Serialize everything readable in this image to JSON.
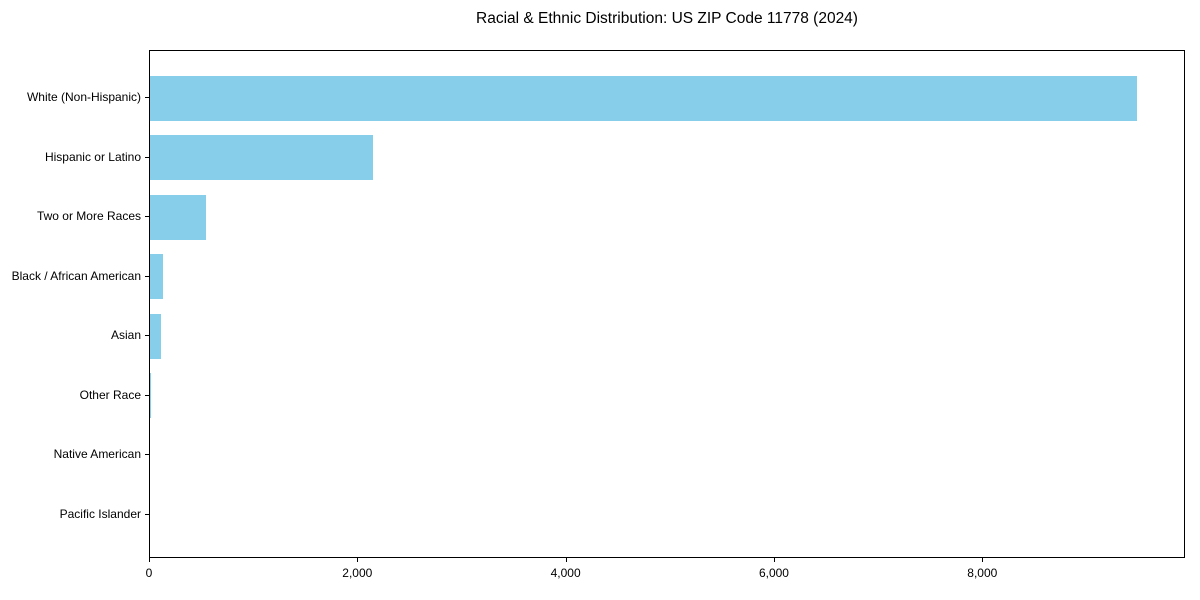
{
  "chart_data": {
    "type": "bar",
    "orientation": "horizontal",
    "title": "Racial & Ethnic Distribution: US ZIP Code 11778 (2024)",
    "categories": [
      "White (Non-Hispanic)",
      "Hispanic or Latino",
      "Two or More Races",
      "Black / African American",
      "Asian",
      "Other Race",
      "Native American",
      "Pacific Islander"
    ],
    "values": [
      9480,
      2145,
      540,
      122,
      108,
      10,
      0,
      0
    ],
    "xlabel": "",
    "ylabel": "",
    "xlim": [
      0,
      9946
    ],
    "xticks": [
      {
        "value": 0,
        "label": "0"
      },
      {
        "value": 2000,
        "label": "2,000"
      },
      {
        "value": 4000,
        "label": "4,000"
      },
      {
        "value": 6000,
        "label": "6,000"
      },
      {
        "value": 8000,
        "label": "8,000"
      }
    ],
    "bar_color": "#87CEEB",
    "background_color": "#FFFFFF",
    "spine_color": "#000000",
    "grid": false,
    "legend_position": "none"
  }
}
